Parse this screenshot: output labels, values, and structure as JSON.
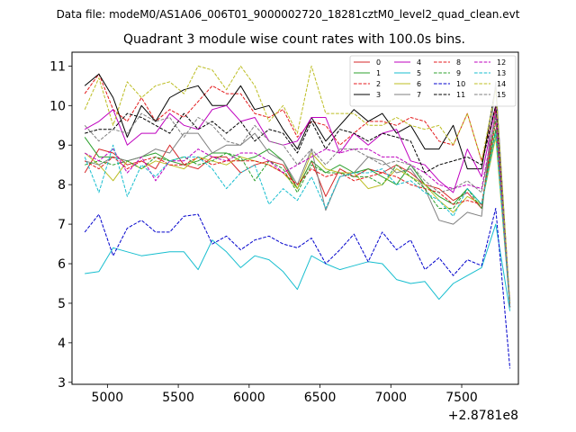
{
  "chart_data": {
    "type": "line",
    "suptitle": "Data file: modeM0/AS1A06_006T01_9000002720_18281cztM0_level2_quad_clean.evt",
    "title": "Quadrant 3 module wise count rates with 100.0s bins.",
    "xlabel": "",
    "ylabel": "",
    "x_offset_label": "+2.8781e8",
    "xlim": [
      4750,
      7900
    ],
    "ylim": [
      2.95,
      11.35
    ],
    "xticks": [
      5000,
      5500,
      6000,
      6500,
      7000,
      7500
    ],
    "xtick_labels": [
      "5000",
      "5500",
      "6000",
      "6500",
      "7000",
      "7500"
    ],
    "yticks": [
      3,
      4,
      5,
      6,
      7,
      8,
      9,
      10,
      11
    ],
    "ytick_labels": [
      "3",
      "4",
      "5",
      "6",
      "7",
      "8",
      "9",
      "10",
      "11"
    ],
    "legend_position": "top-right",
    "x": [
      4840,
      4940,
      5040,
      5140,
      5240,
      5340,
      5440,
      5540,
      5640,
      5740,
      5840,
      5940,
      6040,
      6140,
      6240,
      6340,
      6440,
      6540,
      6640,
      6740,
      6840,
      6940,
      7040,
      7140,
      7240,
      7340,
      7440,
      7540,
      7640,
      7740,
      7840
    ],
    "series": [
      {
        "name": "0",
        "color": "#d62728",
        "dash": "solid",
        "values": [
          8.3,
          8.9,
          8.8,
          8.5,
          8.6,
          8.4,
          9.0,
          8.5,
          8.4,
          8.7,
          8.7,
          8.3,
          8.5,
          8.6,
          8.5,
          7.9,
          8.6,
          7.7,
          8.4,
          8.2,
          8.4,
          8.3,
          8.5,
          8.3,
          8.0,
          7.9,
          7.6,
          7.8,
          7.4,
          9.9,
          4.9
        ]
      },
      {
        "name": "1",
        "color": "#2ca02c",
        "dash": "solid",
        "values": [
          9.2,
          8.7,
          8.7,
          8.6,
          8.7,
          8.8,
          8.6,
          8.5,
          8.6,
          8.8,
          8.8,
          8.6,
          8.7,
          8.9,
          8.6,
          7.9,
          8.6,
          8.3,
          8.5,
          8.3,
          8.4,
          8.2,
          8.0,
          8.5,
          8.0,
          7.7,
          7.5,
          7.9,
          7.5,
          9.4,
          5.0
        ]
      },
      {
        "name": "2",
        "color": "#e41a1c",
        "dash": "dashed",
        "values": [
          10.3,
          10.8,
          9.9,
          9.6,
          10.2,
          9.6,
          9.9,
          9.7,
          10.1,
          10.5,
          10.3,
          10.3,
          9.8,
          9.7,
          9.9,
          9.2,
          9.6,
          9.5,
          9.0,
          9.3,
          9.6,
          9.6,
          9.5,
          9.7,
          9.6,
          9.1,
          9.0,
          9.8,
          8.6,
          10.0,
          4.9
        ]
      },
      {
        "name": "3",
        "color": "#000000",
        "dash": "solid",
        "values": [
          10.5,
          10.8,
          10.2,
          9.2,
          10.0,
          9.6,
          10.2,
          10.4,
          10.5,
          10.0,
          10.0,
          10.5,
          9.9,
          10.0,
          9.4,
          8.9,
          9.7,
          9.1,
          9.5,
          9.9,
          9.6,
          9.8,
          9.3,
          9.5,
          8.9,
          8.9,
          9.5,
          8.4,
          8.4,
          10.5,
          4.9
        ]
      },
      {
        "name": "4",
        "color": "#bf00bf",
        "dash": "solid",
        "values": [
          9.4,
          9.6,
          9.9,
          9.0,
          9.3,
          9.3,
          9.8,
          9.5,
          9.4,
          9.9,
          10.0,
          9.6,
          9.7,
          9.1,
          9.0,
          9.1,
          9.7,
          9.7,
          8.8,
          9.3,
          9.0,
          9.3,
          9.4,
          8.6,
          8.5,
          8.1,
          7.8,
          8.9,
          8.2,
          10.0,
          5.0
        ]
      },
      {
        "name": "5",
        "color": "#17becf",
        "dash": "solid",
        "values": [
          5.75,
          5.8,
          6.4,
          6.3,
          6.2,
          6.25,
          6.3,
          6.3,
          5.85,
          6.6,
          6.3,
          5.9,
          6.2,
          6.1,
          5.8,
          5.35,
          6.2,
          6.0,
          5.85,
          5.95,
          6.05,
          6.0,
          5.6,
          5.5,
          5.55,
          5.1,
          5.5,
          5.7,
          5.9,
          7.0,
          4.8
        ]
      },
      {
        "name": "6",
        "color": "#bcbd22",
        "dash": "solid",
        "values": [
          8.8,
          8.5,
          8.1,
          8.6,
          8.4,
          8.6,
          8.5,
          8.4,
          8.7,
          8.6,
          8.5,
          8.7,
          8.6,
          8.5,
          8.3,
          7.9,
          8.8,
          8.4,
          8.3,
          8.3,
          7.9,
          8.0,
          8.4,
          8.2,
          8.0,
          7.6,
          7.3,
          7.7,
          7.5,
          9.2,
          4.9
        ]
      },
      {
        "name": "7",
        "color": "#7f7f7f",
        "dash": "solid",
        "values": [
          8.6,
          8.5,
          8.7,
          8.6,
          8.7,
          8.9,
          8.8,
          9.3,
          9.3,
          8.8,
          9.0,
          9.0,
          9.3,
          8.8,
          8.6,
          8.0,
          8.9,
          7.35,
          8.2,
          8.3,
          8.7,
          8.6,
          8.3,
          8.4,
          7.9,
          7.1,
          7.0,
          7.3,
          7.2,
          10.6,
          4.9
        ]
      },
      {
        "name": "8",
        "color": "#e41a1c",
        "dash": "dashed",
        "values": [
          8.6,
          8.4,
          8.7,
          8.4,
          8.6,
          8.7,
          8.5,
          8.5,
          8.7,
          8.5,
          8.6,
          8.6,
          8.6,
          8.5,
          8.3,
          8.0,
          8.4,
          8.2,
          8.3,
          8.1,
          8.2,
          8.3,
          8.2,
          8.0,
          7.9,
          7.8,
          7.5,
          7.6,
          7.5,
          9.6,
          4.9
        ]
      },
      {
        "name": "9",
        "color": "#2ca02c",
        "dash": "dashed",
        "values": [
          8.5,
          8.6,
          8.5,
          8.6,
          8.4,
          8.7,
          8.6,
          8.7,
          8.5,
          8.6,
          8.8,
          8.7,
          8.1,
          8.6,
          8.4,
          7.8,
          8.5,
          8.3,
          8.3,
          8.2,
          8.2,
          8.0,
          8.5,
          8.2,
          7.9,
          7.4,
          7.4,
          7.9,
          7.4,
          9.7,
          5.0
        ]
      },
      {
        "name": "10",
        "color": "#0000cc",
        "dash": "dashed",
        "values": [
          6.8,
          7.25,
          6.2,
          6.9,
          7.1,
          6.8,
          6.8,
          7.2,
          7.25,
          6.5,
          6.7,
          6.35,
          6.6,
          6.7,
          6.5,
          6.4,
          6.65,
          6.0,
          6.35,
          6.75,
          6.05,
          6.8,
          6.35,
          6.6,
          5.85,
          6.15,
          5.7,
          6.1,
          5.95,
          7.4,
          3.35
        ]
      },
      {
        "name": "11",
        "color": "#000000",
        "dash": "dashed",
        "values": [
          9.3,
          9.4,
          9.4,
          9.8,
          9.7,
          9.5,
          9.3,
          9.8,
          9.4,
          9.6,
          9.3,
          9.6,
          9.1,
          9.4,
          9.3,
          8.8,
          9.6,
          8.9,
          9.4,
          9.3,
          9.1,
          9.3,
          9.2,
          9.1,
          8.3,
          8.5,
          8.6,
          8.7,
          8.5,
          10.0,
          4.9
        ]
      },
      {
        "name": "12",
        "color": "#bf00bf",
        "dash": "dashed",
        "values": [
          8.8,
          8.6,
          8.9,
          8.3,
          8.7,
          8.1,
          8.6,
          8.6,
          8.9,
          8.7,
          8.6,
          8.8,
          8.8,
          8.6,
          8.3,
          8.5,
          8.7,
          8.9,
          8.8,
          8.9,
          8.9,
          8.7,
          8.7,
          8.5,
          8.3,
          8.0,
          7.9,
          8.0,
          7.9,
          9.8,
          4.9
        ]
      },
      {
        "name": "13",
        "color": "#17becf",
        "dash": "dashed",
        "values": [
          8.7,
          7.8,
          9.0,
          7.7,
          8.5,
          8.2,
          8.6,
          8.7,
          8.7,
          8.4,
          7.9,
          8.3,
          8.5,
          7.5,
          7.9,
          7.6,
          8.2,
          7.4,
          8.2,
          8.3,
          8.3,
          8.4,
          8.0,
          8.1,
          7.8,
          7.6,
          7.2,
          7.9,
          7.5,
          9.3,
          4.9
        ]
      },
      {
        "name": "14",
        "color": "#bcbd22",
        "dash": "dashed",
        "values": [
          9.9,
          10.7,
          9.5,
          10.6,
          10.2,
          10.5,
          10.6,
          10.3,
          11.0,
          10.9,
          10.4,
          11.0,
          10.5,
          9.6,
          10.0,
          9.3,
          11.0,
          9.8,
          9.8,
          9.8,
          9.5,
          9.5,
          9.7,
          9.5,
          9.4,
          9.5,
          9.0,
          9.8,
          8.6,
          10.4,
          5.0
        ]
      },
      {
        "name": "15",
        "color": "#7f7f7f",
        "dash": "dashed",
        "values": [
          9.5,
          9.1,
          9.4,
          9.3,
          9.8,
          9.6,
          9.7,
          9.2,
          9.7,
          9.5,
          9.1,
          9.0,
          9.5,
          9.1,
          9.0,
          8.5,
          8.9,
          8.5,
          8.9,
          8.9,
          8.7,
          8.5,
          8.6,
          8.5,
          8.1,
          7.8,
          7.9,
          8.1,
          7.8,
          9.8,
          4.9
        ]
      }
    ]
  }
}
